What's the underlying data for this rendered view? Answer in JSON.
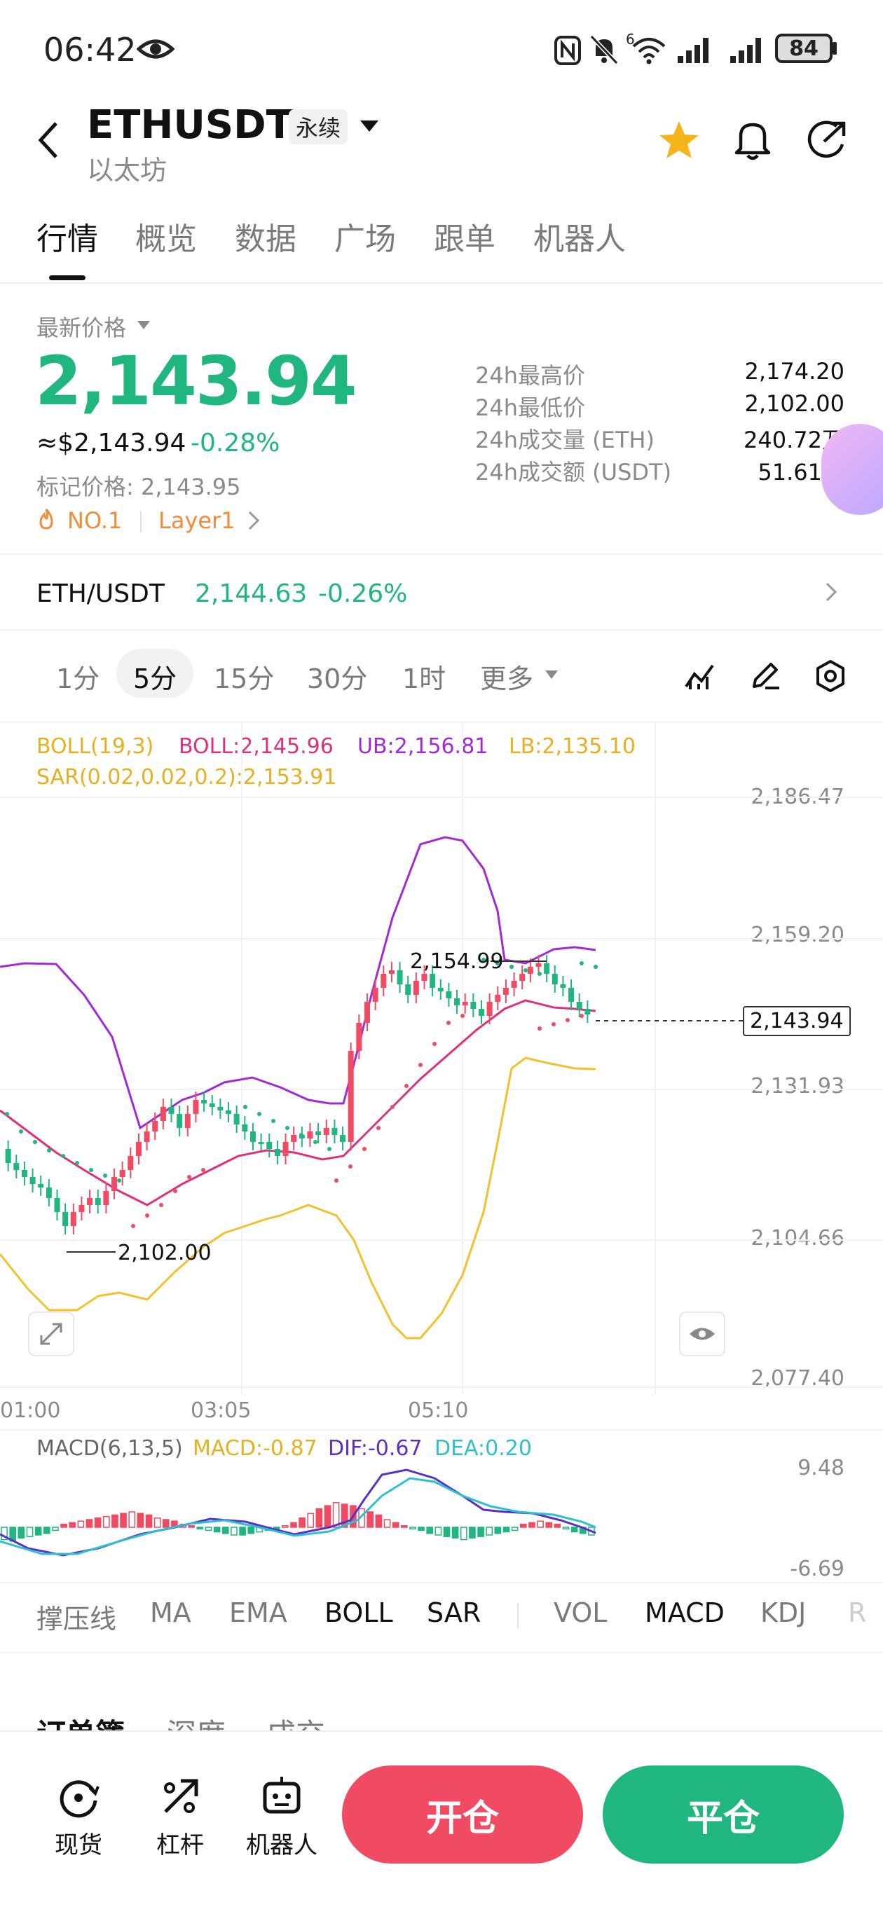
{
  "status_bar": {
    "time": "06:42",
    "battery": "84",
    "signal_badge": "6"
  },
  "header": {
    "symbol": "ETHUSDT",
    "contract_type": "永续",
    "subtitle": "以太坊"
  },
  "tabs": [
    "行情",
    "概览",
    "数据",
    "广场",
    "跟单",
    "机器人"
  ],
  "price": {
    "label": "最新价格",
    "last": "2,143.94",
    "usd": "≈$2,143.94",
    "change": "-0.28%",
    "mark": "标记价格: 2,143.95",
    "rank": "NO.1",
    "tag": "Layer1"
  },
  "stats": [
    {
      "label": "24h最高价",
      "value": "2,174.20"
    },
    {
      "label": "24h最低价",
      "value": "2,102.00"
    },
    {
      "label": "24h成交量 (ETH)",
      "value": "240.72万"
    },
    {
      "label": "24h成交额 (USDT)",
      "value": "51.61亿"
    }
  ],
  "spot": {
    "pair": "ETH/USDT",
    "price": "2,144.63",
    "change": "-0.26%"
  },
  "timeframes": [
    "1分",
    "5分",
    "15分",
    "30分",
    "1时",
    "更多"
  ],
  "boll_legend": {
    "boll": "BOLL(19,3)",
    "mid": "BOLL:2,145.96",
    "ub": "UB:2,156.81",
    "lb": "LB:2,135.10",
    "sar": "SAR(0.02,0.02,0.2):2,153.91"
  },
  "price_axis": [
    "2,186.47",
    "2,159.20",
    "2,131.93",
    "2,104.66",
    "2,077.40"
  ],
  "time_axis": [
    "01:00",
    "03:05",
    "05:10"
  ],
  "high_label": "2,154.99",
  "low_label": "2,102.00",
  "current_label": "2,143.94",
  "macd": {
    "legend": "MACD(6,13,5)",
    "macd": "MACD:-0.87",
    "dif": "DIF:-0.67",
    "dea": "DEA:0.20",
    "axis_top": "9.48",
    "axis_bottom": "-6.69"
  },
  "indicators": [
    "撑压线",
    "MA",
    "EMA",
    "BOLL",
    "SAR",
    "VOL",
    "MACD",
    "KDJ",
    "R"
  ],
  "orderbook_tabs": [
    "订单簿",
    "深度",
    "成交"
  ],
  "bottom_nav": [
    "现货",
    "杠杆",
    "机器人"
  ],
  "actions": {
    "open": "开仓",
    "close": "平仓"
  },
  "colors": {
    "green": "#20b67f",
    "red": "#f04b63",
    "boll_mid": "#e0307a",
    "boll_band": "#f2c12e",
    "boll_ub": "#a22ad6"
  }
}
